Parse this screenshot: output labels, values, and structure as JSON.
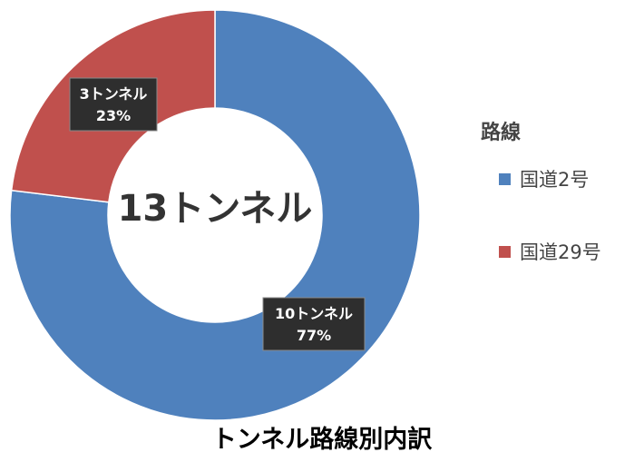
{
  "chart_data": {
    "type": "pie",
    "variant": "donut",
    "title": "トンネル路線別内訳",
    "center_label": "13トンネル",
    "legend_title": "路線",
    "legend_position": "right",
    "categories": [
      "国道2号",
      "国道29号"
    ],
    "values": [
      10,
      3
    ],
    "percentages": [
      77,
      23
    ],
    "data_labels": [
      {
        "count": "10トンネル",
        "percent": "77%"
      },
      {
        "count": "3トンネル",
        "percent": "23%"
      }
    ],
    "colors": [
      "#4f81bd",
      "#c0504d"
    ]
  }
}
